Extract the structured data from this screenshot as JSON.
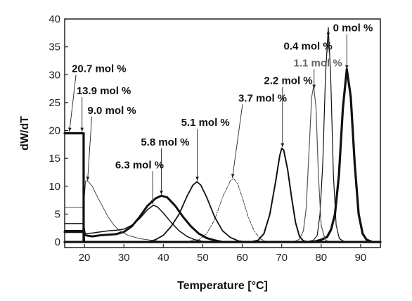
{
  "chart_data": {
    "type": "line",
    "title": "",
    "xlabel": "Temperature [°C]",
    "ylabel": "dW/dT",
    "xlim": [
      15,
      95
    ],
    "ylim": [
      -1,
      40
    ],
    "xticks": [
      20,
      30,
      40,
      50,
      60,
      70,
      80,
      90
    ],
    "yticks": [
      0,
      5,
      10,
      15,
      20,
      25,
      30,
      35,
      40
    ],
    "grid": false,
    "legend": "none",
    "series": [
      {
        "name": "0 mol %",
        "color": "#111111",
        "width": 3.2,
        "dash": "",
        "points": [
          [
            15,
            0
          ],
          [
            78,
            0
          ],
          [
            80,
            0.4
          ],
          [
            81.5,
            0.9
          ],
          [
            82.5,
            2.2
          ],
          [
            83.5,
            5
          ],
          [
            84.5,
            12
          ],
          [
            85.5,
            24
          ],
          [
            86.5,
            31
          ],
          [
            87.5,
            26
          ],
          [
            88.5,
            14
          ],
          [
            89.5,
            5
          ],
          [
            90.5,
            1.5
          ],
          [
            91.5,
            0.4
          ],
          [
            93,
            0
          ],
          [
            95,
            0
          ]
        ]
      },
      {
        "name": "0.4 mol %",
        "color": "#111111",
        "width": 1.2,
        "dash": "",
        "points": [
          [
            15,
            0
          ],
          [
            76,
            0
          ],
          [
            78,
            0.3
          ],
          [
            79,
            1.2
          ],
          [
            79.7,
            5
          ],
          [
            80.4,
            14
          ],
          [
            81.1,
            30
          ],
          [
            81.8,
            38.5
          ],
          [
            82.4,
            30
          ],
          [
            83.1,
            12
          ],
          [
            83.8,
            3
          ],
          [
            84.6,
            0.6
          ],
          [
            86,
            0
          ],
          [
            95,
            0
          ]
        ]
      },
      {
        "name": "1.1 mol %",
        "color": "#555555",
        "width": 1.2,
        "dash": "",
        "points": [
          [
            15,
            0
          ],
          [
            73,
            0
          ],
          [
            74.5,
            0.5
          ],
          [
            75.5,
            2
          ],
          [
            76.2,
            6
          ],
          [
            76.9,
            16
          ],
          [
            77.6,
            26
          ],
          [
            78.1,
            28
          ],
          [
            78.7,
            24
          ],
          [
            79.3,
            12
          ],
          [
            80,
            3
          ],
          [
            81,
            0.4
          ],
          [
            82,
            0
          ],
          [
            95,
            0
          ]
        ]
      },
      {
        "name": "2.2 mol %",
        "color": "#111111",
        "width": 2.0,
        "dash": "",
        "points": [
          [
            15,
            0
          ],
          [
            62,
            0
          ],
          [
            64,
            0.3
          ],
          [
            65.5,
            1.5
          ],
          [
            67,
            5
          ],
          [
            68.5,
            11
          ],
          [
            69.5,
            15.5
          ],
          [
            70,
            16.8
          ],
          [
            70.5,
            16.5
          ],
          [
            71.5,
            13
          ],
          [
            72.5,
            8
          ],
          [
            73.5,
            3.5
          ],
          [
            74.5,
            1
          ],
          [
            75.5,
            0.2
          ],
          [
            77,
            0
          ],
          [
            95,
            0
          ]
        ]
      },
      {
        "name": "3.7 mol %",
        "color": "#444444",
        "width": 1.0,
        "dash": "5,2,1.5,2",
        "points": [
          [
            15,
            0
          ],
          [
            45,
            0
          ],
          [
            49,
            0.4
          ],
          [
            51,
            1.5
          ],
          [
            53,
            4
          ],
          [
            55,
            8
          ],
          [
            57,
            11
          ],
          [
            57.8,
            11.4
          ],
          [
            58.8,
            10.5
          ],
          [
            60,
            8
          ],
          [
            61.5,
            4.5
          ],
          [
            63,
            2
          ],
          [
            64.5,
            0.6
          ],
          [
            66,
            0.1
          ],
          [
            68,
            0
          ],
          [
            95,
            0
          ]
        ]
      },
      {
        "name": "5.1 mol %",
        "color": "#111111",
        "width": 1.8,
        "dash": "",
        "points": [
          [
            15,
            0
          ],
          [
            36,
            0
          ],
          [
            38,
            0.4
          ],
          [
            40,
            1.2
          ],
          [
            42,
            2.8
          ],
          [
            44,
            5
          ],
          [
            46,
            8.2
          ],
          [
            47.5,
            10.2
          ],
          [
            48.5,
            10.8
          ],
          [
            49.5,
            10.2
          ],
          [
            51,
            8
          ],
          [
            53,
            4.5
          ],
          [
            55,
            2
          ],
          [
            57,
            0.8
          ],
          [
            59,
            0.2
          ],
          [
            61,
            0
          ],
          [
            95,
            0
          ]
        ]
      },
      {
        "name": "5.8 mol %",
        "color": "#111111",
        "width": 3.0,
        "dash": "",
        "points": [
          [
            15,
            1.8
          ],
          [
            19.8,
            1.8
          ],
          [
            20.2,
            1.2
          ],
          [
            22,
            1.0
          ],
          [
            24,
            1.2
          ],
          [
            26,
            1.3
          ],
          [
            28,
            1.4
          ],
          [
            30,
            1.8
          ],
          [
            32,
            2.8
          ],
          [
            34,
            4.5
          ],
          [
            36,
            6.5
          ],
          [
            38,
            7.8
          ],
          [
            39.5,
            8.3
          ],
          [
            41,
            8
          ],
          [
            43,
            6.5
          ],
          [
            45,
            4.5
          ],
          [
            47,
            2.8
          ],
          [
            49,
            1.5
          ],
          [
            51,
            0.7
          ],
          [
            53,
            0.3
          ],
          [
            55,
            0
          ],
          [
            95,
            0
          ]
        ]
      },
      {
        "name": "6.3 mol %",
        "color": "#111111",
        "width": 1.5,
        "dash": "",
        "points": [
          [
            15,
            3.3
          ],
          [
            19.8,
            3.3
          ],
          [
            20.2,
            1.5
          ],
          [
            22,
            1.6
          ],
          [
            24,
            1.8
          ],
          [
            26,
            2.0
          ],
          [
            28,
            2.1
          ],
          [
            30,
            2.3
          ],
          [
            32,
            3
          ],
          [
            34,
            4.2
          ],
          [
            36,
            5.8
          ],
          [
            37.5,
            6.6
          ],
          [
            38.5,
            6.3
          ],
          [
            40,
            5.2
          ],
          [
            42,
            3.5
          ],
          [
            44,
            2
          ],
          [
            46,
            1
          ],
          [
            48,
            0.4
          ],
          [
            50,
            0.1
          ],
          [
            52,
            0
          ],
          [
            95,
            0
          ]
        ]
      },
      {
        "name": "9.0 mol %",
        "color": "#333333",
        "width": 0.9,
        "dash": "",
        "points": [
          [
            15,
            6.2
          ],
          [
            19.8,
            6.2
          ],
          [
            20.3,
            11
          ],
          [
            21,
            10.8
          ],
          [
            22,
            10
          ],
          [
            23,
            8.5
          ],
          [
            24.5,
            6.5
          ],
          [
            26,
            4.5
          ],
          [
            27.5,
            3
          ],
          [
            29,
            2
          ],
          [
            31,
            1.2
          ],
          [
            34,
            0.6
          ],
          [
            38,
            0.2
          ],
          [
            42,
            0
          ],
          [
            95,
            0
          ]
        ]
      },
      {
        "name": "13.9 mol %",
        "color": "#111111",
        "width": 2.4,
        "dash": "",
        "points": [
          [
            15,
            2
          ],
          [
            19.8,
            2
          ],
          [
            20,
            0
          ],
          [
            95,
            0
          ]
        ]
      },
      {
        "name": "20.7 mol %",
        "color": "#111111",
        "width": 3.2,
        "dash": "",
        "points": [
          [
            15,
            19.5
          ],
          [
            19.8,
            19.5
          ],
          [
            19.8,
            0
          ],
          [
            95,
            0
          ]
        ]
      }
    ],
    "annotations": [
      {
        "text": "0 mol %",
        "color": "#111111",
        "x": 83,
        "y": 37.8,
        "ax": 86.5,
        "ay": 31
      },
      {
        "text": "0.4 mol %",
        "color": "#111111",
        "x": 70.5,
        "y": 34.5,
        "ax": 81.8,
        "ay": 38
      },
      {
        "text": "1.1 mol %",
        "color": "#666666",
        "x": 73,
        "y": 31.5,
        "ax": 78.2,
        "ay": 27.5
      },
      {
        "text": "2.2 mol %",
        "color": "#111111",
        "x": 65.5,
        "y": 28.3,
        "ax": 70.2,
        "ay": 17
      },
      {
        "text": "3.7 mol %",
        "color": "#111111",
        "x": 59,
        "y": 25.2,
        "ax": 57.5,
        "ay": 11.5
      },
      {
        "text": "5.1 mol %",
        "color": "#111111",
        "x": 44.5,
        "y": 20.8,
        "ax": 48.6,
        "ay": 11
      },
      {
        "text": "5.8 mol %",
        "color": "#111111",
        "x": 34.3,
        "y": 17.3,
        "ax": 39.5,
        "ay": 8.5
      },
      {
        "text": "6.3 mol %",
        "color": "#111111",
        "x": 27.8,
        "y": 13.2,
        "ax": 37.3,
        "ay": 6.8
      },
      {
        "text": "20.7 mol %",
        "color": "#111111",
        "x": 16.8,
        "y": 30.5,
        "ax": 16.2,
        "ay": 19.8
      },
      {
        "text": "13.9 mol %",
        "color": "#111111",
        "x": 18,
        "y": 26.5,
        "ax": 19.4,
        "ay": 19.8
      },
      {
        "text": "9.0 mol %",
        "color": "#111111",
        "x": 20.8,
        "y": 23,
        "ax": 20.8,
        "ay": 11
      }
    ]
  }
}
